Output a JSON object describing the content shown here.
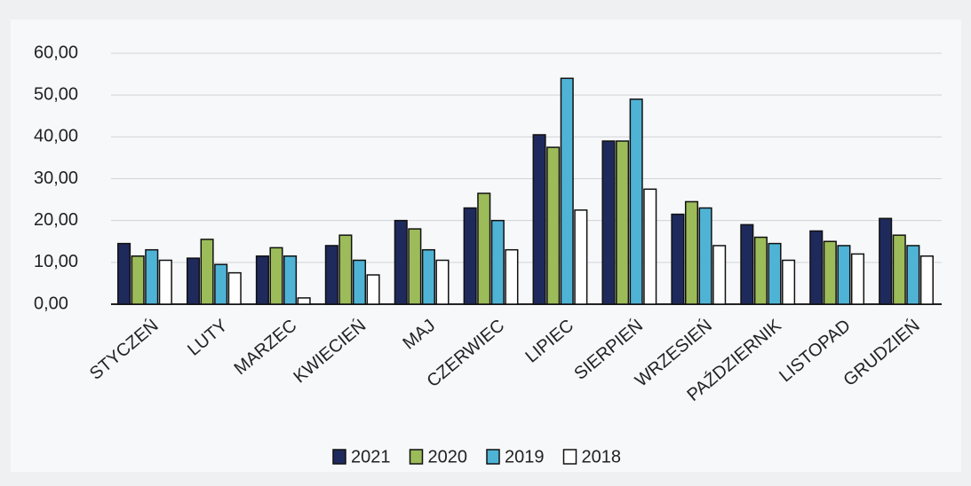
{
  "chart_data": {
    "type": "bar",
    "categories": [
      "STYCZEŃ",
      "LUTY",
      "MARZEC",
      "KWIECIEŃ",
      "MAJ",
      "CZERWIEC",
      "LIPIEC",
      "SIERPIEŃ",
      "WRZESIEŃ",
      "PAŹDZIERNIK",
      "LISTOPAD",
      "GRUDZIEŃ"
    ],
    "series": [
      {
        "name": "2021",
        "color": "#1f2a5c",
        "values": [
          14.5,
          11,
          11.5,
          14,
          20,
          23,
          40.5,
          39,
          21.5,
          19,
          17.5,
          20.5
        ]
      },
      {
        "name": "2020",
        "color": "#9cbb59",
        "values": [
          11.5,
          15.5,
          13.5,
          16.5,
          18,
          26.5,
          37.5,
          39,
          24.5,
          16,
          15,
          16.5
        ]
      },
      {
        "name": "2019",
        "color": "#4fb3d6",
        "values": [
          13,
          9.5,
          11.5,
          10.5,
          13,
          20,
          54,
          49,
          23,
          14.5,
          14,
          14
        ]
      },
      {
        "name": "2018",
        "color": "#ffffff",
        "values": [
          10.5,
          7.5,
          1.5,
          7,
          10.5,
          13,
          22.5,
          27.5,
          14,
          10.5,
          12,
          11.5
        ]
      }
    ],
    "ylim": [
      0,
      60
    ],
    "yticks": [
      {
        "value": 0,
        "label": "0,00"
      },
      {
        "value": 10,
        "label": "10,00"
      },
      {
        "value": 20,
        "label": "20,00"
      },
      {
        "value": 30,
        "label": "30,00"
      },
      {
        "value": 40,
        "label": "40,00"
      },
      {
        "value": 50,
        "label": "50,00"
      },
      {
        "value": 60,
        "label": "60,00"
      }
    ],
    "grid": true
  }
}
